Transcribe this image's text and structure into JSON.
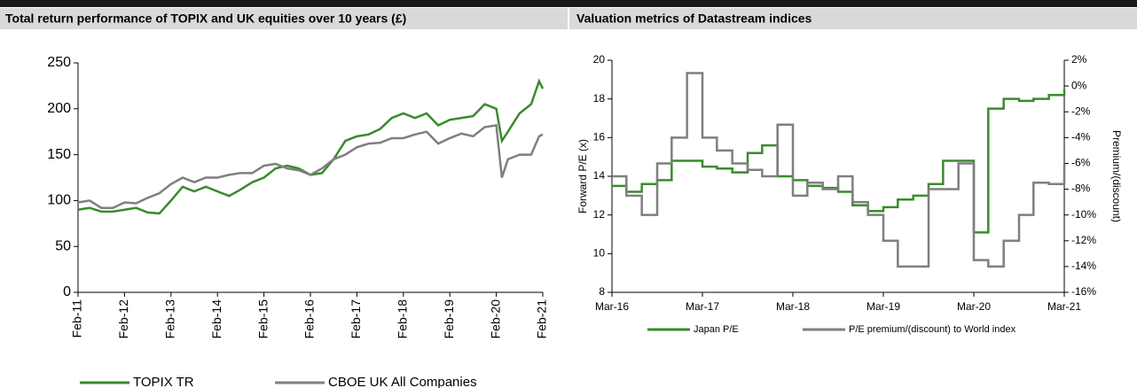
{
  "chart_data": [
    {
      "type": "line",
      "title": "Total return performance of TOPIX and UK equities over 10 years (£)",
      "x": [
        2011.08,
        2011.33,
        2011.58,
        2011.83,
        2012.08,
        2012.33,
        2012.58,
        2012.83,
        2013.08,
        2013.33,
        2013.58,
        2013.83,
        2014.08,
        2014.33,
        2014.58,
        2014.83,
        2015.08,
        2015.33,
        2015.58,
        2015.83,
        2016.08,
        2016.33,
        2016.58,
        2016.83,
        2017.08,
        2017.33,
        2017.58,
        2017.83,
        2018.08,
        2018.33,
        2018.58,
        2018.83,
        2019.08,
        2019.33,
        2019.58,
        2019.83,
        2020.08,
        2020.2,
        2020.33,
        2020.58,
        2020.83,
        2021.0,
        2021.08
      ],
      "series": [
        {
          "name": "TOPIX TR",
          "color": "#3a8a2e",
          "values": [
            90,
            92,
            88,
            88,
            90,
            92,
            87,
            86,
            100,
            115,
            110,
            115,
            110,
            105,
            112,
            120,
            125,
            135,
            138,
            135,
            128,
            130,
            145,
            165,
            170,
            172,
            178,
            190,
            195,
            190,
            195,
            182,
            188,
            190,
            192,
            205,
            200,
            165,
            175,
            195,
            205,
            230,
            222
          ]
        },
        {
          "name": "CBOE UK All Companies",
          "color": "#7f7f7f",
          "values": [
            98,
            100,
            92,
            92,
            98,
            97,
            103,
            108,
            118,
            125,
            120,
            125,
            125,
            128,
            130,
            130,
            138,
            140,
            135,
            133,
            128,
            135,
            145,
            150,
            158,
            162,
            163,
            168,
            168,
            172,
            175,
            162,
            168,
            173,
            170,
            180,
            182,
            125,
            145,
            150,
            150,
            170,
            172
          ]
        }
      ],
      "xlim": [
        2011.08,
        2021.08
      ],
      "xticks": [
        {
          "value": 2011.08,
          "label": "Feb-11"
        },
        {
          "value": 2012.08,
          "label": "Feb-12"
        },
        {
          "value": 2013.08,
          "label": "Feb-13"
        },
        {
          "value": 2014.08,
          "label": "Feb-14"
        },
        {
          "value": 2015.08,
          "label": "Feb-15"
        },
        {
          "value": 2016.08,
          "label": "Feb-16"
        },
        {
          "value": 2017.08,
          "label": "Feb-17"
        },
        {
          "value": 2018.08,
          "label": "Feb-18"
        },
        {
          "value": 2019.08,
          "label": "Feb-19"
        },
        {
          "value": 2020.08,
          "label": "Feb-20"
        },
        {
          "value": 2021.08,
          "label": "Feb-21"
        }
      ],
      "ylim": [
        0,
        250
      ],
      "yticks": [
        0,
        50,
        100,
        150,
        200,
        250
      ],
      "legend": "bottom"
    },
    {
      "type": "line",
      "step": true,
      "title": "Valuation metrics of Datastream indices",
      "y_label": "Forward P/E (x)",
      "y2_label": "Premium/(discount)",
      "x": [
        2016.17,
        2016.33,
        2016.5,
        2016.67,
        2016.83,
        2017.0,
        2017.17,
        2017.33,
        2017.5,
        2017.67,
        2017.83,
        2018.0,
        2018.17,
        2018.33,
        2018.5,
        2018.67,
        2018.83,
        2019.0,
        2019.17,
        2019.33,
        2019.5,
        2019.67,
        2019.83,
        2020.0,
        2020.17,
        2020.33,
        2020.5,
        2020.67,
        2020.83,
        2021.0,
        2021.17
      ],
      "series": [
        {
          "name": "Japan P/E",
          "color": "#3a8a2e",
          "values": [
            13.5,
            13.2,
            13.6,
            13.8,
            14.8,
            14.8,
            14.5,
            14.4,
            14.2,
            15.2,
            15.6,
            14.0,
            13.8,
            13.5,
            13.4,
            13.2,
            12.5,
            12.2,
            12.4,
            12.8,
            13.0,
            13.6,
            14.8,
            14.8,
            11.1,
            17.5,
            18.0,
            17.9,
            18.0,
            18.2,
            18.5
          ]
        },
        {
          "name": "P/E premium/(discount) to World index",
          "color": "#7f7f7f",
          "axis": "y2",
          "values": [
            -7,
            -8.5,
            -10,
            -6,
            -4,
            1,
            -4,
            -5,
            -6,
            -6.5,
            -7,
            -3,
            -8.5,
            -7.5,
            -8,
            -7,
            -9,
            -10,
            -12,
            -14,
            -14,
            -8,
            -8,
            -6,
            -13.5,
            -14,
            -12,
            -10,
            -7.5,
            -7.6,
            -6
          ]
        }
      ],
      "xlim": [
        2016.17,
        2021.17
      ],
      "xticks": [
        {
          "value": 2016.17,
          "label": "Mar-16"
        },
        {
          "value": 2017.17,
          "label": "Mar-17"
        },
        {
          "value": 2018.17,
          "label": "Mar-18"
        },
        {
          "value": 2019.17,
          "label": "Mar-19"
        },
        {
          "value": 2020.17,
          "label": "Mar-20"
        },
        {
          "value": 2021.17,
          "label": "Mar-21"
        }
      ],
      "ylim": [
        8,
        20
      ],
      "yticks": [
        8,
        10,
        12,
        14,
        16,
        18,
        20
      ],
      "y2lim": [
        -16,
        2
      ],
      "y2ticks": [
        {
          "value": -16,
          "label": "-16%"
        },
        {
          "value": -14,
          "label": "-14%"
        },
        {
          "value": -12,
          "label": "-12%"
        },
        {
          "value": -10,
          "label": "-10%"
        },
        {
          "value": -8,
          "label": "-8%"
        },
        {
          "value": -6,
          "label": "-6%"
        },
        {
          "value": -4,
          "label": "-4%"
        },
        {
          "value": -2,
          "label": "-2%"
        },
        {
          "value": 0,
          "label": "0%"
        },
        {
          "value": 2,
          "label": "2%"
        }
      ],
      "legend": "bottom"
    }
  ]
}
